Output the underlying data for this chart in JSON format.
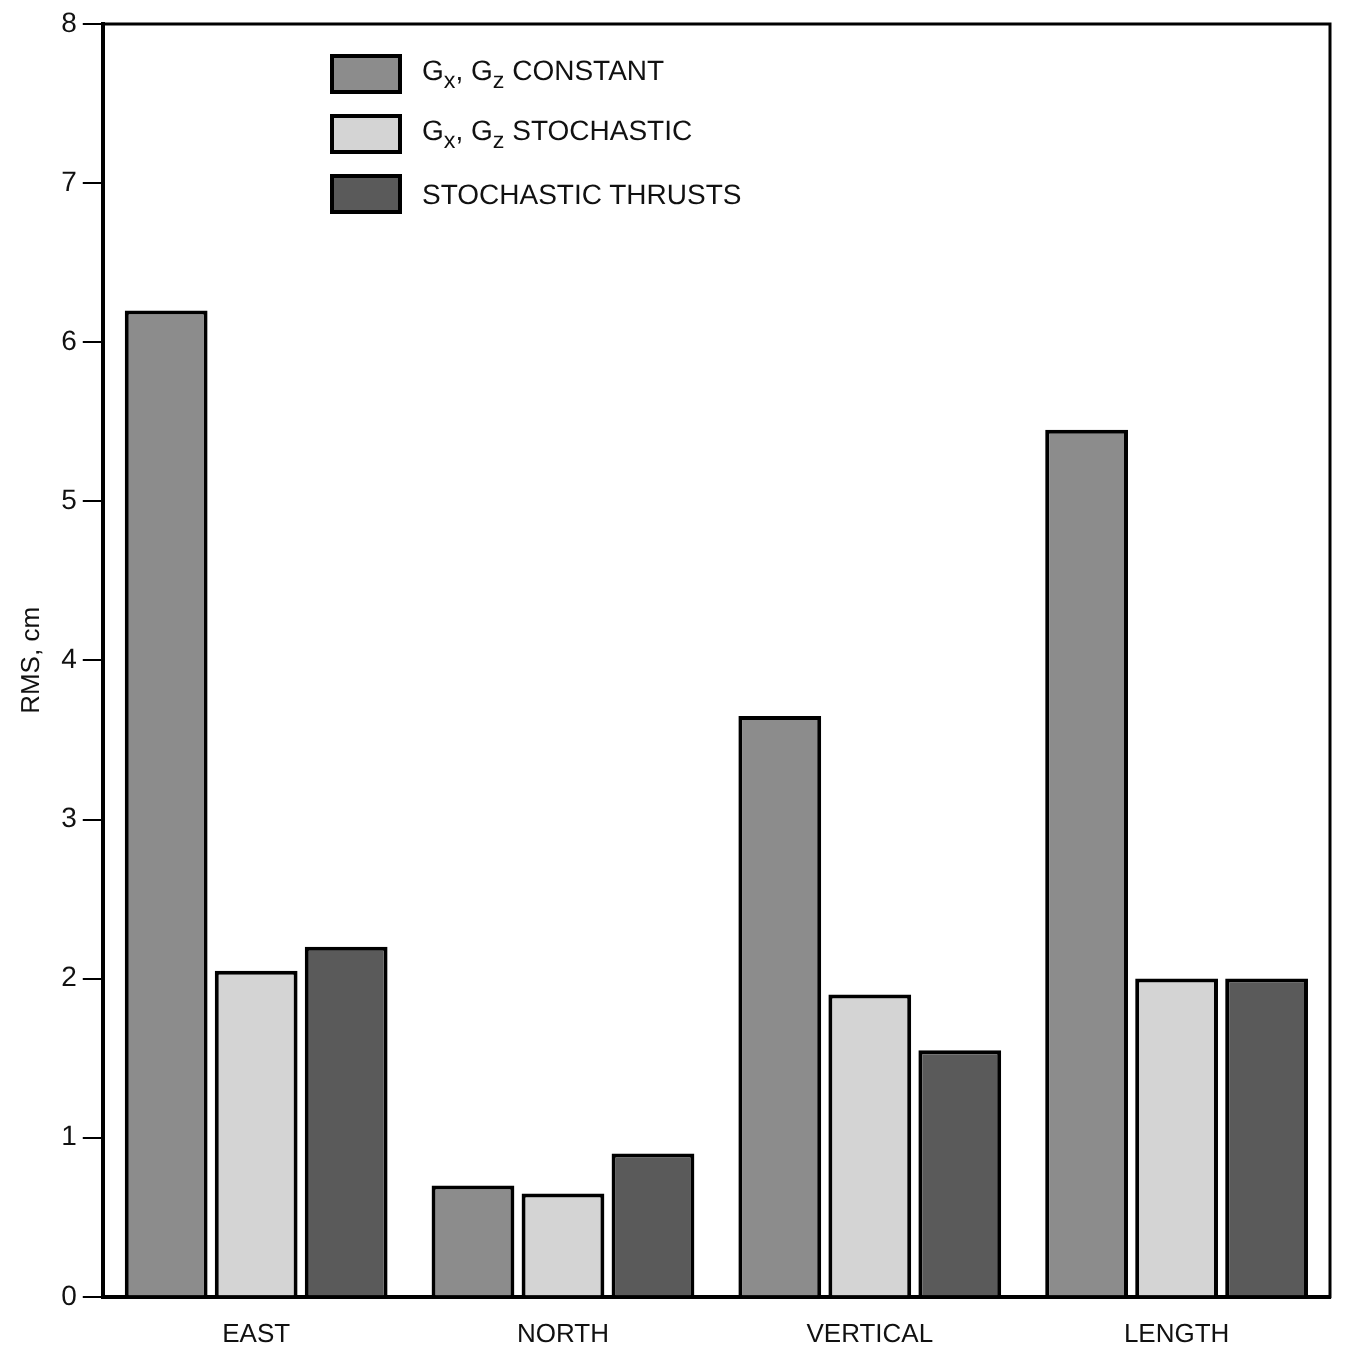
{
  "chart_data": {
    "type": "bar",
    "ylabel": "RMS, cm",
    "categories": [
      "EAST",
      "NORTH",
      "VERTICAL",
      "LENGTH"
    ],
    "series": [
      {
        "name": "G$_{x}$, G$_{z}$ CONSTANT",
        "color": "#8c8c8c",
        "values": [
          6.2,
          0.7,
          3.65,
          5.45
        ]
      },
      {
        "name": "G$_{x}$, G$_{z}$ STOCHASTIC",
        "color": "#d4d4d4",
        "values": [
          2.05,
          0.65,
          1.9,
          2.0
        ]
      },
      {
        "name": "STOCHASTIC THRUSTS",
        "color": "#5a5a5a",
        "values": [
          2.2,
          0.9,
          1.55,
          2.0
        ]
      }
    ],
    "ylim": [
      0,
      8
    ],
    "yticks": [
      0,
      1,
      2,
      3,
      4,
      5,
      6,
      7,
      8
    ],
    "grid": false,
    "legend": "top left"
  }
}
